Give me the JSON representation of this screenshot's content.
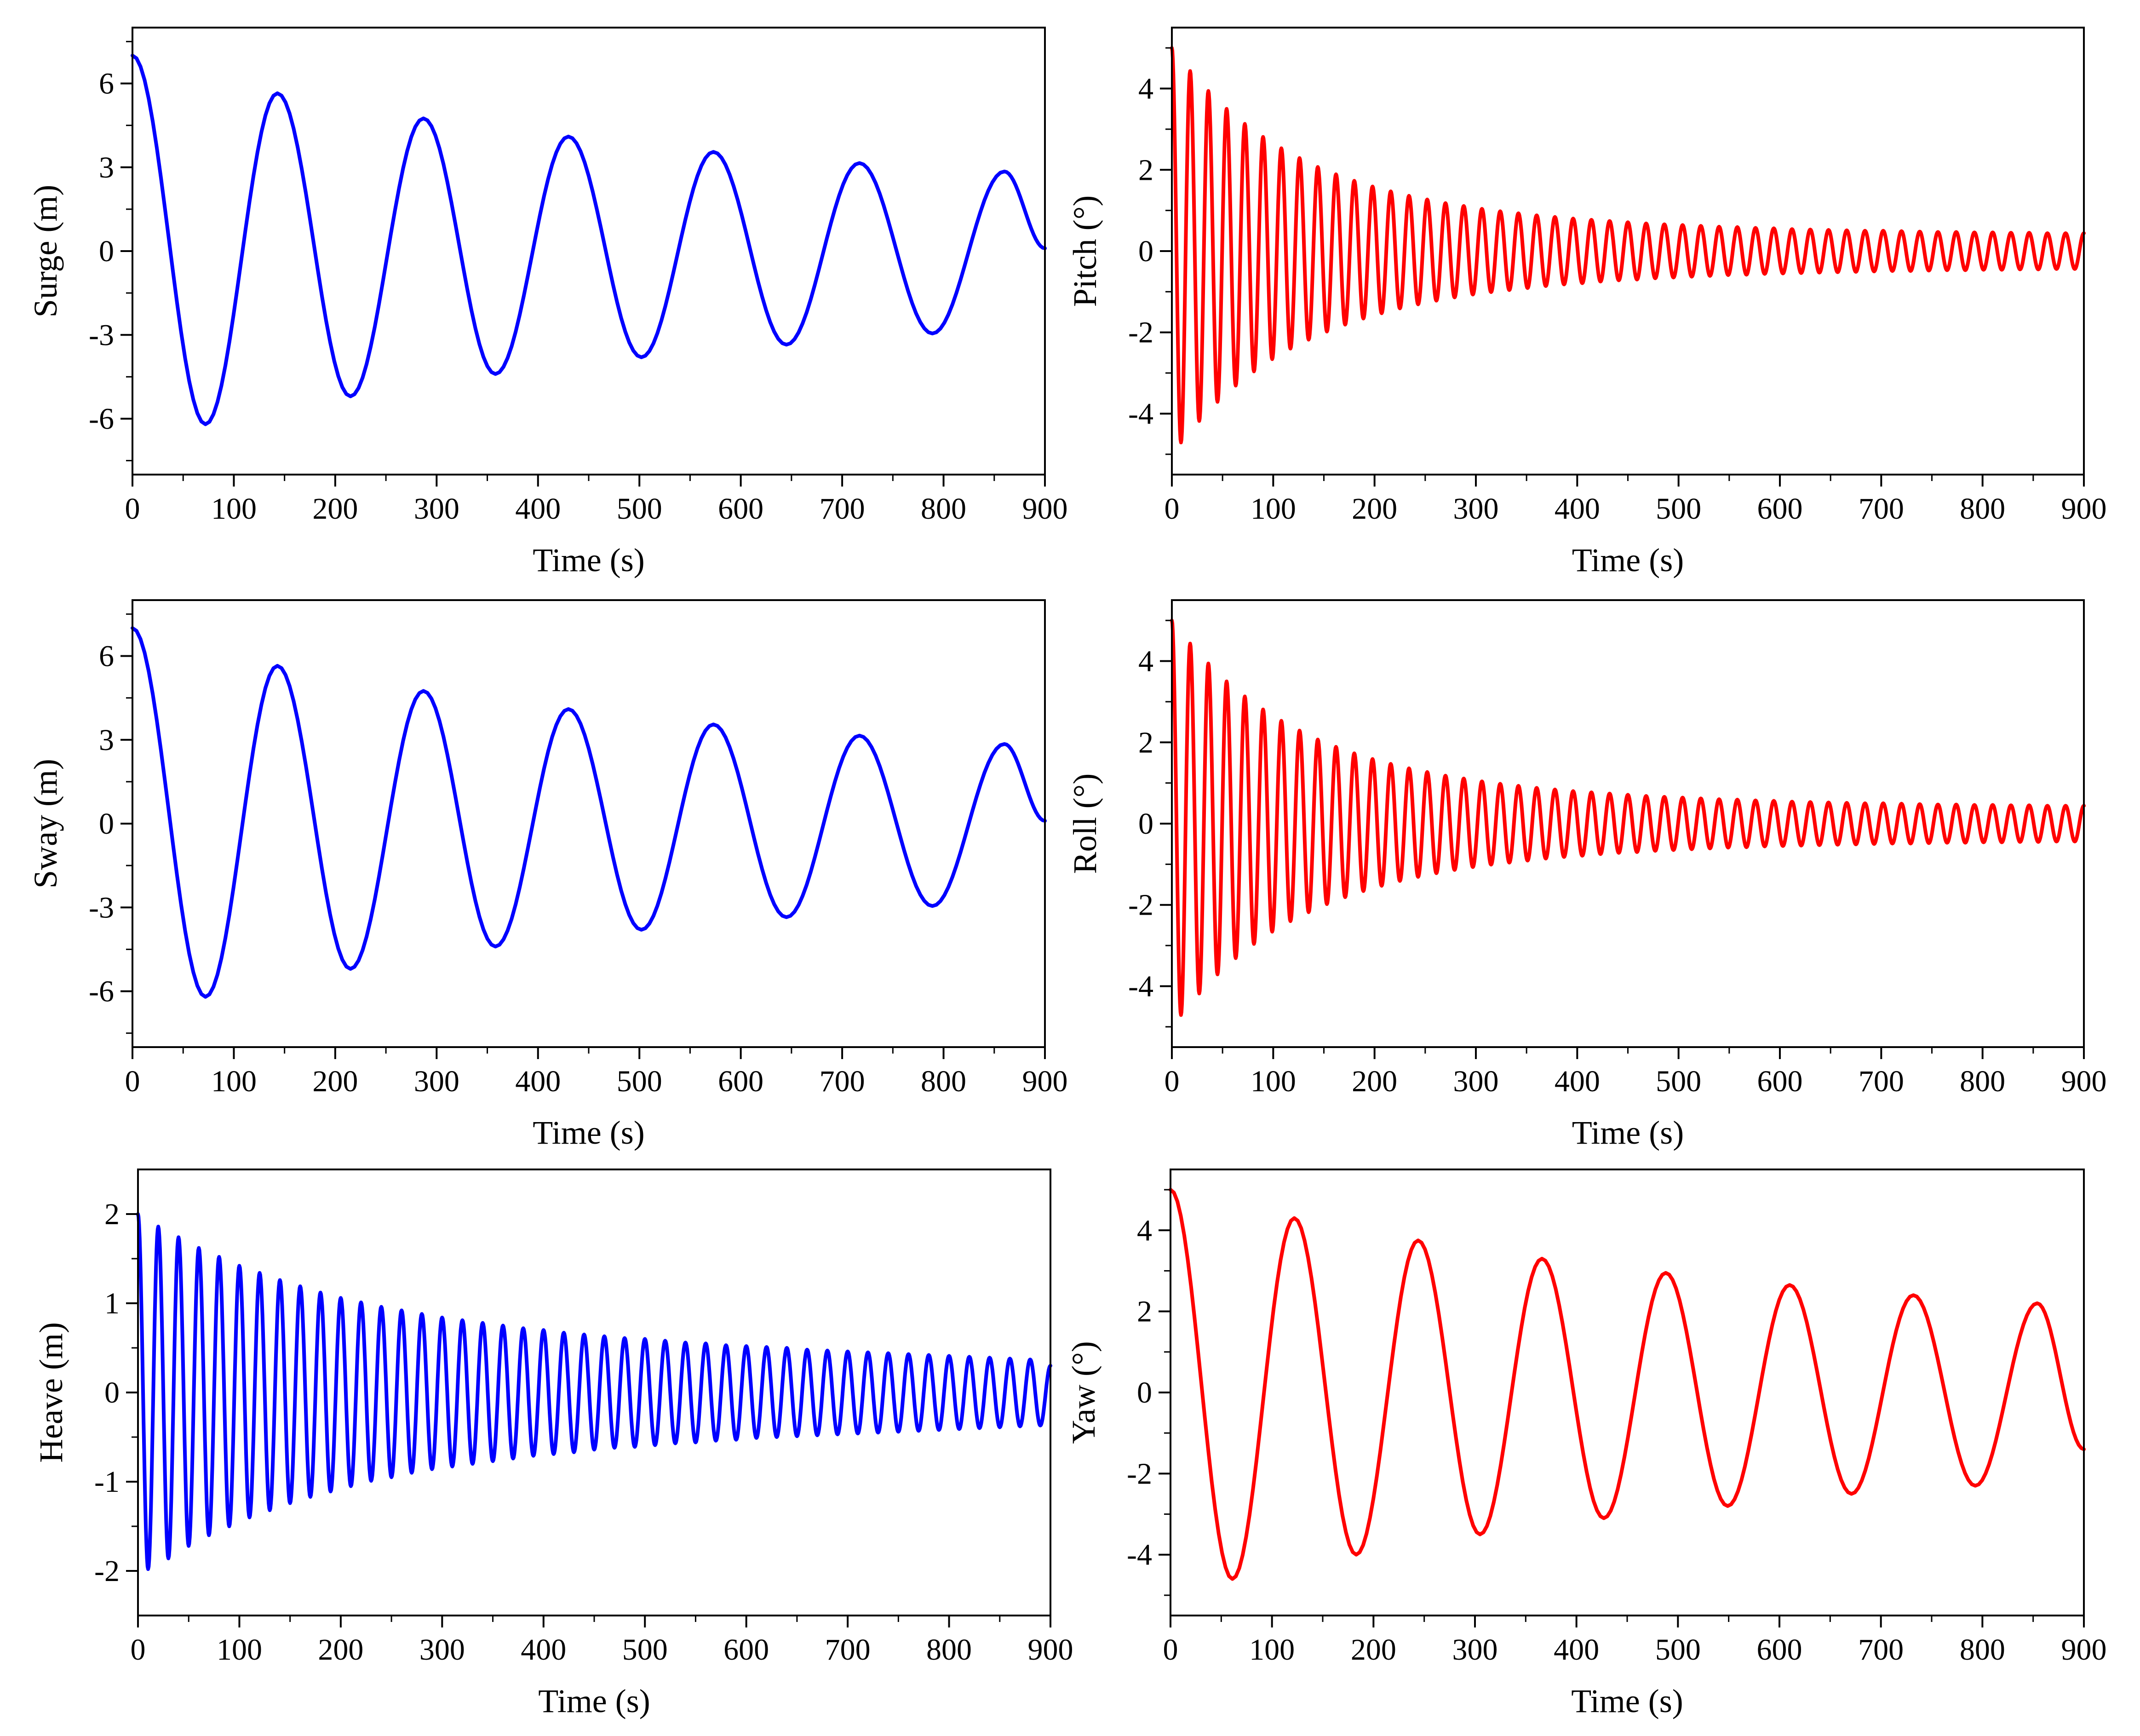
{
  "chart_data": [
    {
      "type": "line",
      "title": "",
      "xlabel": "Time (s)",
      "ylabel": "Surge (m)",
      "xlim": [
        0,
        900
      ],
      "ylim": [
        -8,
        8
      ],
      "xticks": [
        "0",
        "100",
        "200",
        "300",
        "400",
        "500",
        "600",
        "700",
        "800",
        "900"
      ],
      "yticks": [
        "-6",
        "-3",
        "0",
        "3",
        "6"
      ],
      "color": "#0000ff",
      "grid": false,
      "series": [
        {
          "name": "Surge",
          "x": [
            0,
            72,
            143,
            215,
            287,
            358,
            430,
            502,
            573,
            645,
            717,
            789,
            860,
            900
          ],
          "values": [
            7.0,
            -6.2,
            5.65,
            -5.2,
            4.75,
            -4.4,
            4.1,
            -3.8,
            3.55,
            -3.35,
            3.15,
            -2.95,
            2.85,
            0.1
          ]
        }
      ]
    },
    {
      "type": "line",
      "title": "",
      "xlabel": "Time (s)",
      "ylabel": "Pitch (°)",
      "xlim": [
        0,
        900
      ],
      "ylim": [
        -5.5,
        5.5
      ],
      "xticks": [
        "0",
        "100",
        "200",
        "300",
        "400",
        "500",
        "600",
        "700",
        "800",
        "900"
      ],
      "yticks": [
        "-4",
        "-2",
        "0",
        "2",
        "4"
      ],
      "color": "#ff0000",
      "grid": false,
      "series": [
        {
          "name": "Pitch",
          "x": [
            0,
            9,
            18,
            27,
            36,
            45,
            54,
            63,
            72,
            81,
            90,
            99,
            108,
            117,
            126,
            135,
            144,
            153,
            162,
            171,
            180,
            189,
            198,
            207,
            216,
            225,
            234,
            243,
            252,
            261,
            270,
            279,
            288,
            297,
            306,
            315,
            324,
            333,
            342,
            351,
            360,
            369,
            378,
            387,
            396,
            405,
            414,
            423,
            432,
            441,
            450,
            459,
            468,
            477,
            486,
            495,
            504,
            513,
            522,
            531,
            540,
            549,
            558,
            567,
            576,
            585,
            594,
            603,
            612,
            621,
            630,
            639,
            648,
            657,
            666,
            675,
            684,
            693,
            702,
            711,
            720,
            729,
            738,
            747,
            756,
            765,
            774,
            783,
            792,
            801,
            810,
            819,
            828,
            837,
            846,
            855,
            864,
            873,
            882,
            891,
            900
          ],
          "values": [
            5.0,
            -4.71,
            4.43,
            -4.18,
            3.94,
            -3.71,
            3.5,
            -3.31,
            3.13,
            -2.96,
            2.81,
            -2.66,
            2.53,
            -2.4,
            2.29,
            -2.18,
            2.07,
            -1.98,
            1.89,
            -1.81,
            1.73,
            -1.66,
            1.59,
            -1.53,
            1.47,
            -1.41,
            1.36,
            -1.31,
            1.27,
            -1.22,
            1.18,
            -1.14,
            1.11,
            -1.07,
            1.04,
            -1.01,
            0.98,
            -0.96,
            0.93,
            -0.91,
            0.88,
            -0.86,
            0.84,
            -0.82,
            0.8,
            -0.79,
            0.77,
            -0.75,
            0.74,
            -0.72,
            0.71,
            -0.7,
            0.68,
            -0.67,
            0.66,
            -0.65,
            0.64,
            -0.63,
            0.62,
            -0.61,
            0.6,
            -0.59,
            0.59,
            -0.58,
            0.57,
            -0.56,
            0.56,
            -0.55,
            0.54,
            -0.54,
            0.53,
            -0.53,
            0.52,
            -0.52,
            0.51,
            -0.51,
            0.5,
            -0.5,
            0.5,
            -0.49,
            0.49,
            -0.49,
            0.48,
            -0.48,
            0.47,
            -0.47,
            0.47,
            -0.47,
            0.46,
            -0.46,
            0.46,
            -0.46,
            0.45,
            -0.45,
            0.45,
            -0.45,
            0.44,
            -0.44,
            0.44,
            -0.44,
            0.44
          ]
        }
      ]
    },
    {
      "type": "line",
      "title": "",
      "xlabel": "Time (s)",
      "ylabel": "Sway (m)",
      "xlim": [
        0,
        900
      ],
      "ylim": [
        -8,
        8
      ],
      "xticks": [
        "0",
        "100",
        "200",
        "300",
        "400",
        "500",
        "600",
        "700",
        "800",
        "900"
      ],
      "yticks": [
        "-6",
        "-3",
        "0",
        "3",
        "6"
      ],
      "color": "#0000ff",
      "grid": false,
      "series": [
        {
          "name": "Sway",
          "x": [
            0,
            72,
            143,
            215,
            287,
            358,
            430,
            502,
            573,
            645,
            717,
            789,
            860,
            900
          ],
          "values": [
            7.0,
            -6.2,
            5.65,
            -5.2,
            4.75,
            -4.4,
            4.1,
            -3.8,
            3.55,
            -3.35,
            3.15,
            -2.95,
            2.85,
            0.1
          ]
        }
      ]
    },
    {
      "type": "line",
      "title": "",
      "xlabel": "Time (s)",
      "ylabel": "Roll (°)",
      "xlim": [
        0,
        900
      ],
      "ylim": [
        -5.5,
        5.5
      ],
      "xticks": [
        "0",
        "100",
        "200",
        "300",
        "400",
        "500",
        "600",
        "700",
        "800",
        "900"
      ],
      "yticks": [
        "-4",
        "-2",
        "0",
        "2",
        "4"
      ],
      "color": "#ff0000",
      "grid": false,
      "series": [
        {
          "name": "Roll",
          "x": [
            0,
            9,
            18,
            27,
            36,
            45,
            54,
            63,
            72,
            81,
            90,
            99,
            108,
            117,
            126,
            135,
            144,
            153,
            162,
            171,
            180,
            189,
            198,
            207,
            216,
            225,
            234,
            243,
            252,
            261,
            270,
            279,
            288,
            297,
            306,
            315,
            324,
            333,
            342,
            351,
            360,
            369,
            378,
            387,
            396,
            405,
            414,
            423,
            432,
            441,
            450,
            459,
            468,
            477,
            486,
            495,
            504,
            513,
            522,
            531,
            540,
            549,
            558,
            567,
            576,
            585,
            594,
            603,
            612,
            621,
            630,
            639,
            648,
            657,
            666,
            675,
            684,
            693,
            702,
            711,
            720,
            729,
            738,
            747,
            756,
            765,
            774,
            783,
            792,
            801,
            810,
            819,
            828,
            837,
            846,
            855,
            864,
            873,
            882,
            891,
            900
          ],
          "values": [
            5.0,
            -4.71,
            4.43,
            -4.18,
            3.94,
            -3.71,
            3.5,
            -3.31,
            3.13,
            -2.96,
            2.81,
            -2.66,
            2.53,
            -2.4,
            2.29,
            -2.18,
            2.07,
            -1.98,
            1.89,
            -1.81,
            1.73,
            -1.66,
            1.59,
            -1.53,
            1.47,
            -1.41,
            1.36,
            -1.31,
            1.27,
            -1.22,
            1.18,
            -1.14,
            1.11,
            -1.07,
            1.04,
            -1.01,
            0.98,
            -0.96,
            0.93,
            -0.91,
            0.88,
            -0.86,
            0.84,
            -0.82,
            0.8,
            -0.79,
            0.77,
            -0.75,
            0.74,
            -0.72,
            0.71,
            -0.7,
            0.68,
            -0.67,
            0.66,
            -0.65,
            0.64,
            -0.63,
            0.62,
            -0.61,
            0.6,
            -0.59,
            0.59,
            -0.58,
            0.57,
            -0.56,
            0.56,
            -0.55,
            0.54,
            -0.54,
            0.53,
            -0.53,
            0.52,
            -0.52,
            0.51,
            -0.51,
            0.5,
            -0.5,
            0.5,
            -0.49,
            0.49,
            -0.49,
            0.48,
            -0.48,
            0.47,
            -0.47,
            0.47,
            -0.47,
            0.46,
            -0.46,
            0.46,
            -0.46,
            0.45,
            -0.45,
            0.45,
            -0.45,
            0.44,
            -0.44,
            0.44,
            -0.44,
            0.44
          ]
        }
      ]
    },
    {
      "type": "line",
      "title": "",
      "xlabel": "Time (s)",
      "ylabel": "Heave (m)",
      "xlim": [
        0,
        900
      ],
      "ylim": [
        -2.5,
        2.5
      ],
      "xticks": [
        "0",
        "100",
        "200",
        "300",
        "400",
        "500",
        "600",
        "700",
        "800",
        "900"
      ],
      "yticks": [
        "-2",
        "-1",
        "0",
        "1",
        "2"
      ],
      "color": "#0000ff",
      "grid": false,
      "series": [
        {
          "name": "Heave",
          "x": [
            0,
            10,
            20,
            30,
            40,
            50,
            60,
            70,
            80,
            90,
            100,
            110,
            120,
            130,
            140,
            150,
            160,
            170,
            180,
            190,
            200,
            210,
            220,
            230,
            240,
            250,
            260,
            270,
            280,
            290,
            300,
            310,
            320,
            330,
            340,
            350,
            360,
            370,
            380,
            390,
            400,
            410,
            420,
            430,
            440,
            450,
            460,
            470,
            480,
            490,
            500,
            510,
            520,
            530,
            540,
            550,
            560,
            570,
            580,
            590,
            600,
            610,
            620,
            630,
            640,
            650,
            660,
            670,
            680,
            690,
            700,
            710,
            720,
            730,
            740,
            750,
            760,
            770,
            780,
            790,
            800,
            810,
            820,
            830,
            840,
            850,
            860,
            870,
            880,
            890,
            900
          ],
          "values": [
            2.0,
            -1.98,
            1.86,
            -1.86,
            1.74,
            -1.72,
            1.62,
            -1.6,
            1.52,
            -1.5,
            1.42,
            -1.4,
            1.34,
            -1.32,
            1.26,
            -1.24,
            1.19,
            -1.17,
            1.12,
            -1.11,
            1.06,
            -1.05,
            1.01,
            -0.99,
            0.96,
            -0.95,
            0.92,
            -0.9,
            0.88,
            -0.86,
            0.84,
            -0.83,
            0.81,
            -0.8,
            0.78,
            -0.77,
            0.75,
            -0.74,
            0.72,
            -0.71,
            0.7,
            -0.69,
            0.67,
            -0.67,
            0.65,
            -0.64,
            0.63,
            -0.62,
            0.61,
            -0.61,
            0.6,
            -0.59,
            0.58,
            -0.57,
            0.56,
            -0.56,
            0.55,
            -0.54,
            0.53,
            -0.53,
            0.52,
            -0.51,
            0.51,
            -0.5,
            0.5,
            -0.49,
            0.48,
            -0.48,
            0.47,
            -0.47,
            0.46,
            -0.46,
            0.45,
            -0.45,
            0.44,
            -0.44,
            0.43,
            -0.43,
            0.42,
            -0.42,
            0.41,
            -0.41,
            0.4,
            -0.4,
            0.39,
            -0.39,
            0.38,
            -0.38,
            0.37,
            -0.37,
            0.3
          ]
        }
      ]
    },
    {
      "type": "line",
      "title": "",
      "xlabel": "Time (s)",
      "ylabel": "Yaw (°)",
      "xlim": [
        0,
        900
      ],
      "ylim": [
        -5.5,
        5.5
      ],
      "xticks": [
        "0",
        "100",
        "200",
        "300",
        "400",
        "500",
        "600",
        "700",
        "800",
        "900"
      ],
      "yticks": [
        "-4",
        "-2",
        "0",
        "2",
        "4"
      ],
      "color": "#ff0000",
      "grid": false,
      "series": [
        {
          "name": "Yaw",
          "x": [
            0,
            61,
            122,
            183,
            244,
            305,
            366,
            427,
            488,
            549,
            610,
            671,
            732,
            793,
            854,
            900
          ],
          "values": [
            5.0,
            -4.6,
            4.3,
            -4.0,
            3.75,
            -3.5,
            3.3,
            -3.1,
            2.95,
            -2.8,
            2.65,
            -2.5,
            2.4,
            -2.3,
            2.2,
            -1.4
          ]
        }
      ]
    }
  ]
}
